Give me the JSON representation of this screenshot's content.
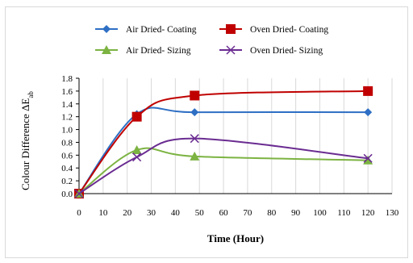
{
  "chart_data": {
    "type": "line",
    "xlabel": "Time (Hour)",
    "ylabel": "Colour Difference ΔE",
    "ylabel_sub": "ab",
    "xlim": [
      0,
      130
    ],
    "ylim": [
      0,
      1.8
    ],
    "xticks": [
      0,
      10,
      20,
      30,
      40,
      50,
      60,
      70,
      80,
      90,
      100,
      110,
      120,
      130
    ],
    "yticks": [
      "0.0",
      "0.2",
      "0.4",
      "0.6",
      "0.8",
      "1.0",
      "1.2",
      "1.4",
      "1.6",
      "1.8"
    ],
    "grid": {
      "x": true,
      "y": false
    },
    "legend_position": "top",
    "series": [
      {
        "name": "Air Dried- Coating",
        "color": "#2e6fc4",
        "marker": "diamond",
        "x": [
          0,
          24,
          48,
          120
        ],
        "y": [
          0.0,
          1.24,
          1.27,
          1.27
        ]
      },
      {
        "name": "Oven Dried- Coating",
        "color": "#c00000",
        "marker": "square",
        "x": [
          0,
          24,
          48,
          120
        ],
        "y": [
          0.0,
          1.2,
          1.53,
          1.6
        ]
      },
      {
        "name": "Air Dried- Sizing",
        "color": "#7cb342",
        "marker": "triangle",
        "x": [
          0,
          24,
          48,
          120
        ],
        "y": [
          0.0,
          0.68,
          0.58,
          0.52
        ]
      },
      {
        "name": "Oven Dried- Sizing",
        "color": "#6a2c91",
        "marker": "cross",
        "x": [
          0,
          24,
          48,
          120
        ],
        "y": [
          0.0,
          0.57,
          0.86,
          0.55
        ]
      }
    ]
  }
}
